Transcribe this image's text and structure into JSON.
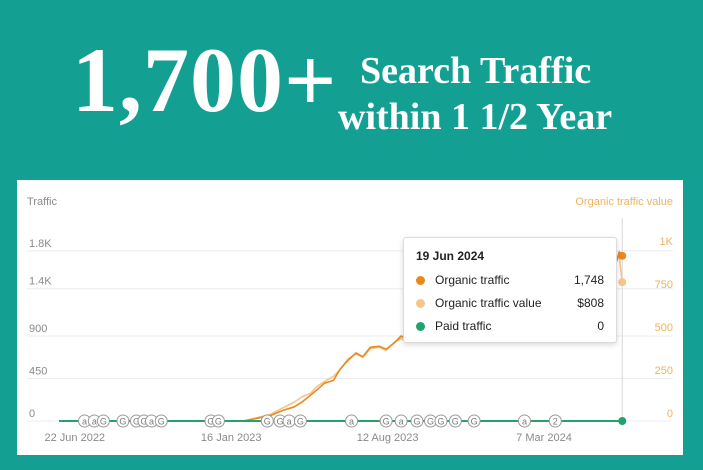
{
  "headline": {
    "number": "1,700+",
    "line1": "Search Traffic",
    "line2": "within 1 1/2 Year"
  },
  "colors": {
    "background": "#13a093",
    "organic_traffic": "#e8891c",
    "organic_traffic_value": "#f5c58d",
    "paid_traffic": "#23a26d",
    "grid": "#ececec"
  },
  "chart_data": {
    "type": "line",
    "ylabel_left": "Traffic",
    "ylabel_right": "Organic traffic value",
    "y_left_ticks": [
      "0",
      "450",
      "900",
      "1.4K",
      "1.8K"
    ],
    "y_left_range": [
      0,
      2000
    ],
    "y_right_ticks": [
      "0",
      "250",
      "500",
      "750",
      "1K"
    ],
    "y_right_range": [
      0,
      1100
    ],
    "x_ticks": [
      "22 Jun 2022",
      "16 Jan 2023",
      "12 Aug 2023",
      "7 Mar 2024"
    ],
    "x_range": [
      "2022-06-01",
      "2024-06-20"
    ],
    "grid": true,
    "series": [
      {
        "name": "Organic traffic",
        "axis": "left",
        "points": [
          [
            "2022-06-01",
            0
          ],
          [
            "2022-12-01",
            0
          ],
          [
            "2023-02-01",
            0
          ],
          [
            "2023-02-20",
            30
          ],
          [
            "2023-03-10",
            60
          ],
          [
            "2023-03-25",
            110
          ],
          [
            "2023-04-10",
            150
          ],
          [
            "2023-04-20",
            200
          ],
          [
            "2023-05-01",
            270
          ],
          [
            "2023-05-10",
            330
          ],
          [
            "2023-05-20",
            400
          ],
          [
            "2023-06-01",
            430
          ],
          [
            "2023-06-10",
            550
          ],
          [
            "2023-06-20",
            640
          ],
          [
            "2023-07-01",
            720
          ],
          [
            "2023-07-10",
            680
          ],
          [
            "2023-07-20",
            780
          ],
          [
            "2023-08-01",
            790
          ],
          [
            "2023-08-10",
            760
          ],
          [
            "2023-08-20",
            820
          ],
          [
            "2023-08-30",
            900
          ],
          [
            "2023-09-05",
            860
          ],
          [
            "2023-09-10",
            920
          ],
          [
            "2024-05-25",
            1620
          ],
          [
            "2024-06-05",
            1750
          ],
          [
            "2024-06-10",
            1650
          ],
          [
            "2024-06-15",
            1790
          ],
          [
            "2024-06-19",
            1748
          ]
        ]
      },
      {
        "name": "Organic traffic value",
        "axis": "right",
        "points": [
          [
            "2022-06-01",
            0
          ],
          [
            "2022-12-01",
            0
          ],
          [
            "2023-02-01",
            0
          ],
          [
            "2023-02-20",
            20
          ],
          [
            "2023-03-10",
            40
          ],
          [
            "2023-03-25",
            75
          ],
          [
            "2023-04-10",
            110
          ],
          [
            "2023-04-20",
            140
          ],
          [
            "2023-05-01",
            160
          ],
          [
            "2023-05-10",
            200
          ],
          [
            "2023-05-20",
            230
          ],
          [
            "2023-06-01",
            260
          ],
          [
            "2023-06-10",
            300
          ],
          [
            "2023-06-20",
            360
          ],
          [
            "2023-07-01",
            390
          ],
          [
            "2023-07-10",
            370
          ],
          [
            "2023-07-20",
            420
          ],
          [
            "2023-08-01",
            430
          ],
          [
            "2023-08-10",
            410
          ],
          [
            "2023-08-20",
            455
          ],
          [
            "2023-08-30",
            480
          ],
          [
            "2023-09-05",
            460
          ],
          [
            "2023-09-10",
            500
          ],
          [
            "2024-05-25",
            880
          ],
          [
            "2024-06-05",
            1000
          ],
          [
            "2024-06-10",
            920
          ],
          [
            "2024-06-15",
            960
          ],
          [
            "2024-06-19",
            808
          ]
        ]
      },
      {
        "name": "Paid traffic",
        "axis": "left",
        "points": [
          [
            "2022-06-01",
            0
          ],
          [
            "2024-06-19",
            0
          ]
        ]
      }
    ],
    "event_markers": [
      {
        "date": "2022-07-05",
        "symbol": "a"
      },
      {
        "date": "2022-07-18",
        "symbol": "a"
      },
      {
        "date": "2022-07-30",
        "symbol": "G"
      },
      {
        "date": "2022-08-25",
        "symbol": "G"
      },
      {
        "date": "2022-09-12",
        "symbol": "G"
      },
      {
        "date": "2022-09-22",
        "symbol": "G"
      },
      {
        "date": "2022-10-02",
        "symbol": "a"
      },
      {
        "date": "2022-10-15",
        "symbol": "G"
      },
      {
        "date": "2022-12-20",
        "symbol": "G"
      },
      {
        "date": "2022-12-30",
        "symbol": "G"
      },
      {
        "date": "2023-03-05",
        "symbol": "G"
      },
      {
        "date": "2023-03-22",
        "symbol": "G"
      },
      {
        "date": "2023-04-03",
        "symbol": "a"
      },
      {
        "date": "2023-04-18",
        "symbol": "G"
      },
      {
        "date": "2023-06-25",
        "symbol": "a"
      },
      {
        "date": "2023-08-10",
        "symbol": "G"
      },
      {
        "date": "2023-08-30",
        "symbol": "a"
      },
      {
        "date": "2023-09-20",
        "symbol": "G"
      },
      {
        "date": "2023-10-08",
        "symbol": "G"
      },
      {
        "date": "2023-10-22",
        "symbol": "G"
      },
      {
        "date": "2023-11-10",
        "symbol": "G"
      },
      {
        "date": "2023-12-05",
        "symbol": "G"
      },
      {
        "date": "2024-02-10",
        "symbol": "a"
      },
      {
        "date": "2024-03-22",
        "symbol": "2"
      }
    ],
    "tooltip": {
      "date": "19 Jun 2024",
      "rows": [
        {
          "label": "Organic traffic",
          "value": "1,748",
          "color": "#e8891c"
        },
        {
          "label": "Organic traffic value",
          "value": "$808",
          "color": "#f5c58d"
        },
        {
          "label": "Paid traffic",
          "value": "0",
          "color": "#23a26d"
        }
      ]
    }
  }
}
